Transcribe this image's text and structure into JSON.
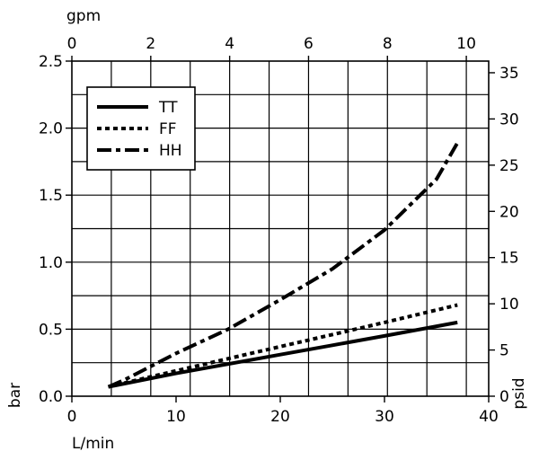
{
  "chart_data": {
    "type": "line",
    "x": {
      "label": "L/min",
      "lim": [
        0,
        40
      ],
      "ticks": [
        0,
        10,
        20,
        30,
        40
      ]
    },
    "x_top": {
      "label": "gpm",
      "lim": [
        0,
        10.567
      ],
      "ticks": [
        0,
        2,
        4,
        6,
        8,
        10
      ]
    },
    "y": {
      "label": "bar",
      "lim": [
        0,
        2.5
      ],
      "ticks": [
        0.0,
        0.5,
        1.0,
        1.5,
        2.0,
        2.5
      ],
      "tick_labels": [
        "0.0",
        "0.5",
        "1.0",
        "1.5",
        "2.0",
        "2.5"
      ]
    },
    "y_right": {
      "label": "psid",
      "lim": [
        0,
        36.26
      ],
      "ticks": [
        0,
        5,
        10,
        15,
        20,
        25,
        30,
        35
      ]
    },
    "grid": true,
    "legend": {
      "position": "top-left"
    },
    "series": [
      {
        "name": "TT",
        "style": "solid",
        "x": [
          3.5,
          10,
          15,
          20,
          25,
          30,
          37
        ],
        "y": [
          0.07,
          0.17,
          0.24,
          0.31,
          0.38,
          0.45,
          0.55
        ]
      },
      {
        "name": "FF",
        "style": "dotted",
        "x": [
          3.5,
          10,
          15,
          20,
          25,
          30,
          37
        ],
        "y": [
          0.07,
          0.19,
          0.28,
          0.37,
          0.46,
          0.55,
          0.68
        ]
      },
      {
        "name": "HH",
        "style": "dashdot",
        "x": [
          3.5,
          5,
          10,
          15,
          20,
          25,
          30,
          35,
          37
        ],
        "y": [
          0.07,
          0.12,
          0.32,
          0.5,
          0.72,
          0.95,
          1.24,
          1.62,
          1.89
        ]
      }
    ]
  }
}
